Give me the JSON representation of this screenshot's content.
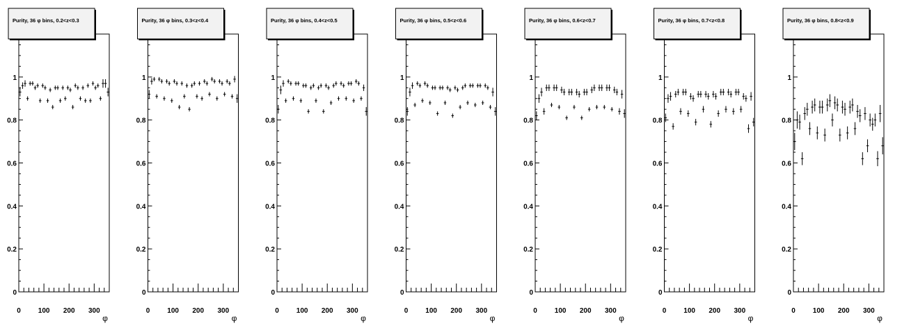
{
  "chart_data": [
    {
      "type": "scatter",
      "title": "Purity, 36 φ bins, 0.2<z<0.3",
      "xlabel": "φ",
      "ylabel": "",
      "xlim": [
        0,
        360
      ],
      "ylim": [
        0,
        1.2
      ],
      "x_ticks": [
        "0",
        "100",
        "200",
        "300"
      ],
      "y_ticks": [
        "0",
        "0.2",
        "0.4",
        "0.6",
        "0.8",
        "1"
      ],
      "series": [
        {
          "x": [
            5,
            15,
            25,
            35,
            45,
            55,
            65,
            75,
            85,
            95,
            105,
            115,
            125,
            135,
            145,
            155,
            165,
            175,
            185,
            195,
            205,
            215,
            225,
            235,
            245,
            255,
            265,
            275,
            285,
            295,
            305,
            315,
            325,
            335,
            345,
            355
          ],
          "y": [
            0.93,
            0.96,
            0.97,
            0.9,
            0.97,
            0.97,
            0.95,
            0.96,
            0.89,
            0.96,
            0.95,
            0.89,
            0.94,
            0.86,
            0.95,
            0.95,
            0.89,
            0.95,
            0.9,
            0.95,
            0.94,
            0.86,
            0.96,
            0.95,
            0.9,
            0.95,
            0.89,
            0.96,
            0.89,
            0.97,
            0.95,
            0.96,
            0.9,
            0.97,
            0.97,
            0.93
          ],
          "err": [
            0.02,
            0.015,
            0.015,
            0.01,
            0.01,
            0.01,
            0.01,
            0.01,
            0.01,
            0.01,
            0.01,
            0.01,
            0.01,
            0.01,
            0.01,
            0.01,
            0.01,
            0.01,
            0.01,
            0.01,
            0.01,
            0.01,
            0.01,
            0.01,
            0.01,
            0.01,
            0.01,
            0.01,
            0.01,
            0.01,
            0.01,
            0.01,
            0.01,
            0.02,
            0.02,
            0.02
          ]
        }
      ]
    },
    {
      "type": "scatter",
      "title": "Purity, 36 φ bins, 0.3<z<0.4",
      "xlabel": "φ",
      "ylabel": "",
      "xlim": [
        0,
        360
      ],
      "ylim": [
        0,
        1.2
      ],
      "x_ticks": [
        "0",
        "100",
        "200",
        "300"
      ],
      "y_ticks": [
        "0",
        "0.2",
        "0.4",
        "0.6",
        "0.8",
        "1"
      ],
      "series": [
        {
          "x": [
            5,
            15,
            25,
            35,
            45,
            55,
            65,
            75,
            85,
            95,
            105,
            115,
            125,
            135,
            145,
            155,
            165,
            175,
            185,
            195,
            205,
            215,
            225,
            235,
            245,
            255,
            265,
            275,
            285,
            295,
            305,
            315,
            325,
            335,
            345,
            355
          ],
          "y": [
            0.92,
            0.98,
            0.99,
            0.91,
            0.99,
            0.98,
            0.9,
            0.98,
            0.97,
            0.89,
            0.98,
            0.97,
            0.86,
            0.97,
            0.91,
            0.96,
            0.85,
            0.96,
            0.97,
            0.91,
            0.97,
            0.9,
            0.98,
            0.97,
            0.92,
            0.99,
            0.98,
            0.9,
            0.98,
            0.97,
            0.92,
            0.98,
            0.97,
            0.91,
            0.99,
            0.9
          ],
          "err": [
            0.02,
            0.015,
            0.01,
            0.01,
            0.01,
            0.01,
            0.01,
            0.01,
            0.01,
            0.01,
            0.01,
            0.01,
            0.01,
            0.01,
            0.01,
            0.01,
            0.01,
            0.01,
            0.01,
            0.01,
            0.01,
            0.01,
            0.01,
            0.01,
            0.01,
            0.01,
            0.01,
            0.01,
            0.01,
            0.01,
            0.01,
            0.01,
            0.01,
            0.01,
            0.015,
            0.02
          ]
        }
      ]
    },
    {
      "type": "scatter",
      "title": "Purity, 36 φ bins, 0.4<z<0.5",
      "xlabel": "φ",
      "ylabel": "",
      "xlim": [
        0,
        360
      ],
      "ylim": [
        0,
        1.2
      ],
      "x_ticks": [
        "0",
        "100",
        "200",
        "300"
      ],
      "y_ticks": [
        "0",
        "0.2",
        "0.4",
        "0.6",
        "0.8",
        "1"
      ],
      "series": [
        {
          "x": [
            5,
            15,
            25,
            35,
            45,
            55,
            65,
            75,
            85,
            95,
            105,
            115,
            125,
            135,
            145,
            155,
            165,
            175,
            185,
            195,
            205,
            215,
            225,
            235,
            245,
            255,
            265,
            275,
            285,
            295,
            305,
            315,
            325,
            335,
            345,
            355
          ],
          "y": [
            0.85,
            0.94,
            0.97,
            0.89,
            0.98,
            0.97,
            0.9,
            0.97,
            0.97,
            0.89,
            0.96,
            0.96,
            0.84,
            0.95,
            0.96,
            0.89,
            0.95,
            0.96,
            0.84,
            0.96,
            0.95,
            0.88,
            0.96,
            0.97,
            0.9,
            0.97,
            0.96,
            0.9,
            0.97,
            0.97,
            0.89,
            0.98,
            0.97,
            0.9,
            0.95,
            0.84
          ],
          "err": [
            0.02,
            0.02,
            0.015,
            0.01,
            0.01,
            0.01,
            0.01,
            0.01,
            0.01,
            0.01,
            0.01,
            0.01,
            0.01,
            0.01,
            0.01,
            0.01,
            0.01,
            0.01,
            0.01,
            0.01,
            0.01,
            0.01,
            0.01,
            0.01,
            0.01,
            0.01,
            0.01,
            0.01,
            0.01,
            0.01,
            0.01,
            0.01,
            0.01,
            0.01,
            0.015,
            0.02
          ]
        }
      ]
    },
    {
      "type": "scatter",
      "title": "Purity, 36 φ bins, 0.5<z<0.6",
      "xlabel": "φ",
      "ylabel": "",
      "xlim": [
        0,
        360
      ],
      "ylim": [
        0,
        1.2
      ],
      "x_ticks": [
        "0",
        "100",
        "200",
        "300"
      ],
      "y_ticks": [
        "0",
        "0.2",
        "0.4",
        "0.6",
        "0.8",
        "1"
      ],
      "series": [
        {
          "x": [
            5,
            15,
            25,
            35,
            45,
            55,
            65,
            75,
            85,
            95,
            105,
            115,
            125,
            135,
            145,
            155,
            165,
            175,
            185,
            195,
            205,
            215,
            225,
            235,
            245,
            255,
            265,
            275,
            285,
            295,
            305,
            315,
            325,
            335,
            345,
            355
          ],
          "y": [
            0.84,
            0.93,
            0.96,
            0.87,
            0.97,
            0.96,
            0.89,
            0.97,
            0.96,
            0.88,
            0.95,
            0.95,
            0.83,
            0.95,
            0.95,
            0.88,
            0.95,
            0.94,
            0.82,
            0.95,
            0.94,
            0.86,
            0.95,
            0.96,
            0.88,
            0.96,
            0.96,
            0.87,
            0.96,
            0.96,
            0.88,
            0.96,
            0.95,
            0.86,
            0.93,
            0.84
          ],
          "err": [
            0.02,
            0.02,
            0.015,
            0.01,
            0.01,
            0.01,
            0.01,
            0.01,
            0.01,
            0.01,
            0.01,
            0.01,
            0.01,
            0.01,
            0.01,
            0.01,
            0.01,
            0.01,
            0.01,
            0.01,
            0.01,
            0.01,
            0.01,
            0.01,
            0.01,
            0.01,
            0.01,
            0.01,
            0.01,
            0.01,
            0.01,
            0.01,
            0.01,
            0.01,
            0.02,
            0.02
          ]
        }
      ]
    },
    {
      "type": "scatter",
      "title": "Purity, 36 φ bins, 0.6<z<0.7",
      "xlabel": "φ",
      "ylabel": "",
      "xlim": [
        0,
        360
      ],
      "ylim": [
        0,
        1.2
      ],
      "x_ticks": [
        "0",
        "100",
        "200",
        "300"
      ],
      "y_ticks": [
        "0",
        "0.2",
        "0.4",
        "0.6",
        "0.8",
        "1"
      ],
      "series": [
        {
          "x": [
            5,
            15,
            25,
            35,
            45,
            55,
            65,
            75,
            85,
            95,
            105,
            115,
            125,
            135,
            145,
            155,
            165,
            175,
            185,
            195,
            205,
            215,
            225,
            235,
            245,
            255,
            265,
            275,
            285,
            295,
            305,
            315,
            325,
            335,
            345,
            355
          ],
          "y": [
            0.82,
            0.9,
            0.93,
            0.84,
            0.95,
            0.95,
            0.87,
            0.95,
            0.95,
            0.86,
            0.94,
            0.93,
            0.81,
            0.93,
            0.93,
            0.86,
            0.93,
            0.92,
            0.81,
            0.93,
            0.93,
            0.85,
            0.94,
            0.95,
            0.86,
            0.95,
            0.95,
            0.86,
            0.95,
            0.95,
            0.85,
            0.94,
            0.93,
            0.84,
            0.92,
            0.83
          ],
          "err": [
            0.02,
            0.02,
            0.02,
            0.015,
            0.015,
            0.015,
            0.01,
            0.015,
            0.015,
            0.01,
            0.015,
            0.015,
            0.01,
            0.015,
            0.015,
            0.01,
            0.015,
            0.015,
            0.01,
            0.015,
            0.015,
            0.01,
            0.015,
            0.015,
            0.01,
            0.015,
            0.015,
            0.01,
            0.015,
            0.015,
            0.01,
            0.015,
            0.015,
            0.015,
            0.02,
            0.02
          ]
        }
      ]
    },
    {
      "type": "scatter",
      "title": "Purity, 36 φ bins, 0.7<z<0.8",
      "xlabel": "φ",
      "ylabel": "",
      "xlim": [
        0,
        360
      ],
      "ylim": [
        0,
        1.2
      ],
      "x_ticks": [
        "0",
        "100",
        "200",
        "300"
      ],
      "y_ticks": [
        "0",
        "0.2",
        "0.4",
        "0.6",
        "0.8",
        "1"
      ],
      "series": [
        {
          "x": [
            5,
            15,
            25,
            35,
            45,
            55,
            65,
            75,
            85,
            95,
            105,
            115,
            125,
            135,
            145,
            155,
            165,
            175,
            185,
            195,
            205,
            215,
            225,
            235,
            245,
            255,
            265,
            275,
            285,
            295,
            305,
            315,
            325,
            335,
            345,
            355
          ],
          "y": [
            0.81,
            0.9,
            0.91,
            0.77,
            0.92,
            0.93,
            0.84,
            0.93,
            0.93,
            0.83,
            0.91,
            0.9,
            0.79,
            0.92,
            0.92,
            0.85,
            0.92,
            0.91,
            0.78,
            0.92,
            0.91,
            0.83,
            0.93,
            0.93,
            0.85,
            0.93,
            0.92,
            0.84,
            0.93,
            0.93,
            0.85,
            0.91,
            0.9,
            0.76,
            0.91,
            0.79
          ],
          "err": [
            0.02,
            0.02,
            0.02,
            0.015,
            0.015,
            0.015,
            0.015,
            0.015,
            0.015,
            0.015,
            0.015,
            0.015,
            0.015,
            0.015,
            0.015,
            0.015,
            0.015,
            0.015,
            0.015,
            0.015,
            0.015,
            0.015,
            0.015,
            0.015,
            0.015,
            0.015,
            0.015,
            0.015,
            0.015,
            0.015,
            0.015,
            0.015,
            0.015,
            0.02,
            0.02,
            0.02
          ]
        }
      ]
    },
    {
      "type": "scatter",
      "title": "Purity, 36 φ bins, 0.8<z<0.9",
      "xlabel": "φ",
      "ylabel": "",
      "xlim": [
        0,
        360
      ],
      "ylim": [
        0,
        1.2
      ],
      "x_ticks": [
        "0",
        "100",
        "200",
        "300"
      ],
      "y_ticks": [
        "0",
        "0.2",
        "0.4",
        "0.6",
        "0.8",
        "1"
      ],
      "series": [
        {
          "x": [
            5,
            15,
            25,
            35,
            45,
            55,
            65,
            75,
            85,
            95,
            105,
            115,
            125,
            135,
            145,
            155,
            165,
            175,
            185,
            195,
            205,
            215,
            225,
            235,
            245,
            255,
            265,
            275,
            285,
            295,
            305,
            315,
            325,
            335,
            345,
            355
          ],
          "y": [
            0.7,
            0.8,
            0.79,
            0.62,
            0.83,
            0.85,
            0.76,
            0.86,
            0.87,
            0.74,
            0.86,
            0.86,
            0.73,
            0.87,
            0.89,
            0.8,
            0.88,
            0.87,
            0.73,
            0.86,
            0.85,
            0.74,
            0.86,
            0.87,
            0.76,
            0.84,
            0.82,
            0.62,
            0.83,
            0.68,
            0.8,
            0.78,
            0.8,
            0.62,
            0.83,
            0.68
          ],
          "err": [
            0.04,
            0.04,
            0.035,
            0.03,
            0.03,
            0.03,
            0.03,
            0.03,
            0.03,
            0.03,
            0.03,
            0.03,
            0.03,
            0.03,
            0.03,
            0.03,
            0.03,
            0.03,
            0.03,
            0.03,
            0.03,
            0.03,
            0.03,
            0.03,
            0.03,
            0.03,
            0.03,
            0.03,
            0.03,
            0.03,
            0.03,
            0.03,
            0.03,
            0.035,
            0.04,
            0.04
          ]
        }
      ]
    }
  ]
}
